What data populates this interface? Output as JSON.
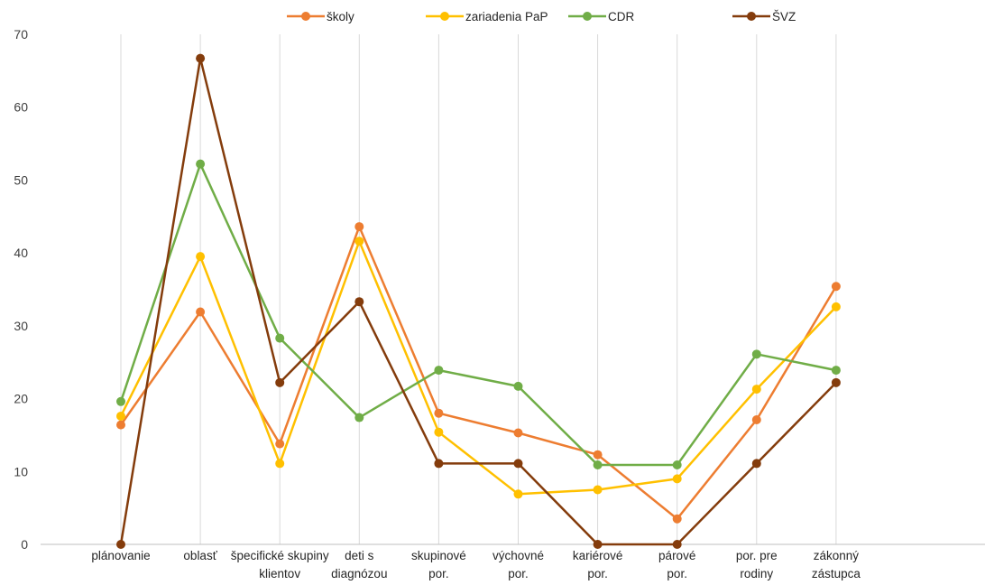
{
  "chart_data": {
    "type": "line",
    "title": "",
    "xlabel": "",
    "ylabel": "",
    "ylim": [
      0,
      70
    ],
    "yticks": [
      0,
      10,
      20,
      30,
      40,
      50,
      60,
      70
    ],
    "grid": "vertical",
    "legend": "top",
    "categories": [
      [
        "plánovanie"
      ],
      [
        "oblasť"
      ],
      [
        "špecifické skupiny",
        "klientov"
      ],
      [
        "deti s",
        "diagnózou"
      ],
      [
        "skupinové",
        "por."
      ],
      [
        "výchovné",
        "por."
      ],
      [
        "kariérové",
        "por."
      ],
      [
        "párové",
        "por."
      ],
      [
        "por. pre",
        "rodiny"
      ],
      [
        "zákonný",
        "zástupca"
      ]
    ],
    "series": [
      {
        "name": "školy",
        "color": "#ED7D31",
        "values": [
          16.4,
          31.9,
          13.8,
          43.6,
          18.0,
          15.3,
          12.3,
          3.5,
          17.1,
          35.4
        ]
      },
      {
        "name": "zariadenia PaP",
        "color": "#FFC000",
        "values": [
          17.6,
          39.5,
          11.1,
          41.6,
          15.4,
          6.9,
          7.5,
          9.0,
          21.3,
          32.6
        ]
      },
      {
        "name": "CDR",
        "color": "#70AD47",
        "values": [
          19.6,
          52.2,
          28.3,
          17.4,
          23.9,
          21.7,
          10.9,
          10.9,
          26.1,
          23.9
        ]
      },
      {
        "name": "ŠVZ",
        "color": "#843C0C",
        "values": [
          0,
          66.7,
          22.2,
          33.3,
          11.1,
          11.1,
          0,
          0,
          11.1,
          22.2
        ]
      }
    ]
  }
}
